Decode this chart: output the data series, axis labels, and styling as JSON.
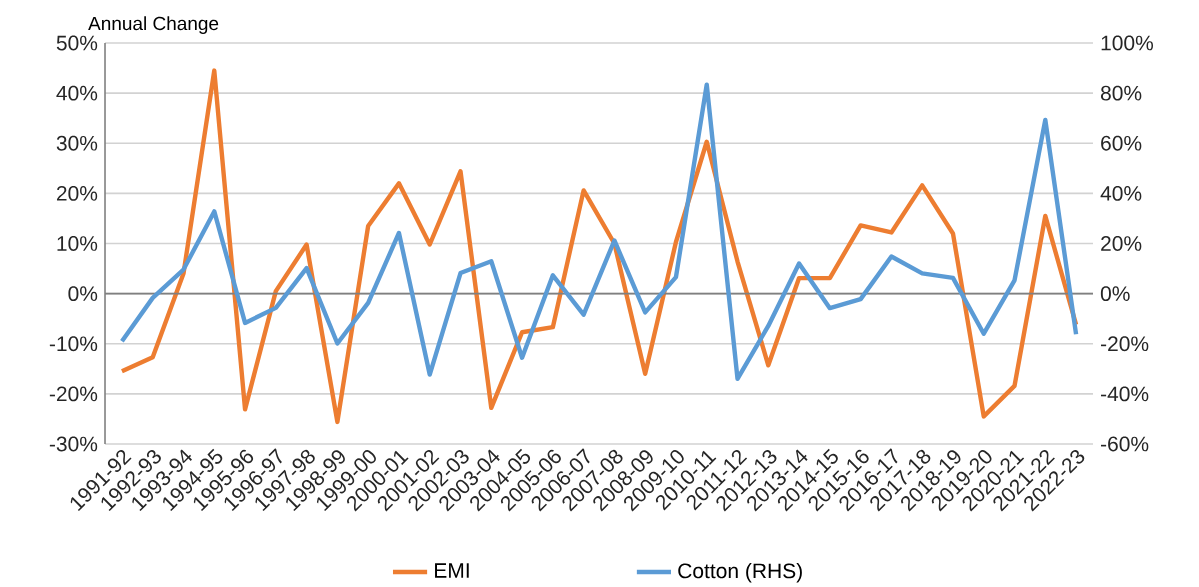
{
  "chart_data": {
    "type": "line",
    "ylabel": "Annual Change",
    "categories": [
      "1991-92",
      "1992-93",
      "1993-94",
      "1994-95",
      "1995-96",
      "1996-97",
      "1997-98",
      "1998-99",
      "1999-00",
      "2000-01",
      "2001-02",
      "2002-03",
      "2003-04",
      "2004-05",
      "2005-06",
      "2006-07",
      "2007-08",
      "2008-09",
      "2009-10",
      "2010-11",
      "2011-12",
      "2012-13",
      "2013-14",
      "2014-15",
      "2015-16",
      "2016-17",
      "2017-18",
      "2018-19",
      "2019-20",
      "2020-21",
      "2021-22",
      "2022-23"
    ],
    "series": [
      {
        "name": "EMI",
        "color": "#ed7d31",
        "values": [
          -15.5,
          -12.7,
          4,
          44.5,
          -23.1,
          0.5,
          9.8,
          -25.6,
          13.5,
          22,
          9.8,
          24.4,
          -22.8,
          -7.7,
          -6.7,
          20.6,
          10,
          -16,
          10.3,
          30.3,
          6.4,
          -14.3,
          3.1,
          3.1,
          13.6,
          12.2,
          21.6,
          12,
          -24.5,
          -18.4,
          15.5,
          -6.2
        ]
      },
      {
        "name": "Cotton (RHS)",
        "color": "#5b9bd5",
        "axis": "y2",
        "values": [
          -19,
          -1.7,
          9.6,
          32.8,
          -11.7,
          -5.7,
          10.2,
          -19.9,
          -3.7,
          24.2,
          -32.3,
          8.2,
          12.9,
          -25.6,
          7.3,
          -8.4,
          21.2,
          -7.5,
          6.6,
          83.4,
          -34,
          -12.9,
          12,
          -5.8,
          -2.2,
          14.8,
          8.1,
          6.3,
          -16,
          5.3,
          69.3,
          -16.2
        ]
      }
    ],
    "ylim": [
      -30,
      50
    ],
    "yticks": [
      {
        "value": -30,
        "label": "-30%"
      },
      {
        "value": -20,
        "label": "-20%"
      },
      {
        "value": -10,
        "label": "-10%"
      },
      {
        "value": 0,
        "label": "0%"
      },
      {
        "value": 10,
        "label": "10%"
      },
      {
        "value": 20,
        "label": "20%"
      },
      {
        "value": 30,
        "label": "30%"
      },
      {
        "value": 40,
        "label": "40%"
      },
      {
        "value": 50,
        "label": "50%"
      }
    ],
    "y2lim": [
      -60,
      100
    ],
    "y2ticks": [
      {
        "value": -60,
        "label": "-60%"
      },
      {
        "value": -40,
        "label": "-40%"
      },
      {
        "value": -20,
        "label": "-20%"
      },
      {
        "value": 0,
        "label": "0%"
      },
      {
        "value": 20,
        "label": "20%"
      },
      {
        "value": 40,
        "label": "40%"
      },
      {
        "value": 60,
        "label": "60%"
      },
      {
        "value": 80,
        "label": "80%"
      },
      {
        "value": 100,
        "label": "100%"
      }
    ],
    "grid": "y",
    "legend": "bottom",
    "marker": "none",
    "line_style": "solid"
  }
}
